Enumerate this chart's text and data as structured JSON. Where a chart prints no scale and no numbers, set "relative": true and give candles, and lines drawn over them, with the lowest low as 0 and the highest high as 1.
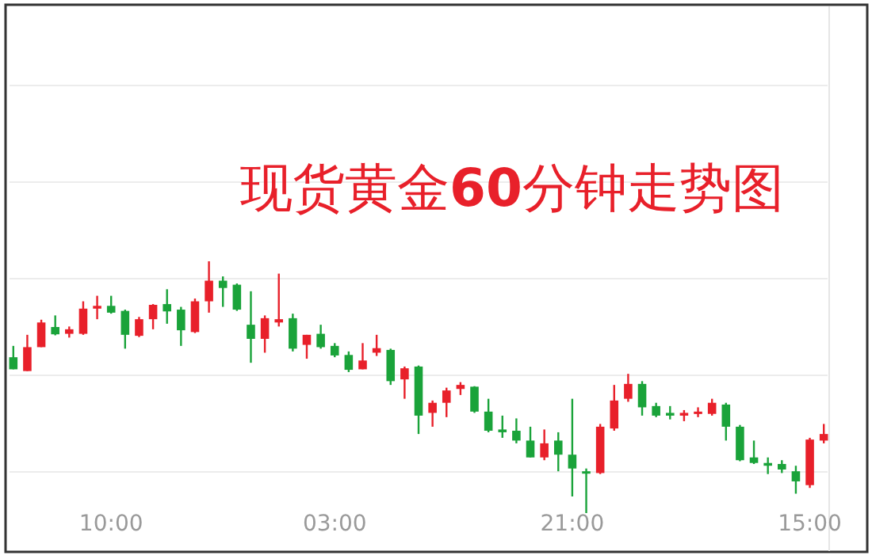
{
  "chart_data": {
    "type": "candlestick",
    "title": "现货黄金**60**分钟走势图",
    "relative": true,
    "grid": "y",
    "categories": [
      null,
      null,
      null,
      null,
      null,
      null,
      null,
      "10:00",
      null,
      null,
      null,
      null,
      null,
      null,
      null,
      null,
      null,
      null,
      null,
      null,
      null,
      null,
      null,
      "03:00",
      null,
      null,
      null,
      null,
      null,
      null,
      null,
      null,
      null,
      null,
      null,
      null,
      null,
      null,
      null,
      null,
      "21:00",
      null,
      null,
      null,
      null,
      null,
      null,
      null,
      null,
      null,
      null,
      null,
      null,
      null,
      null,
      null,
      null,
      "15:00",
      null
    ],
    "ohlc": [
      [
        0.619,
        0.664,
        0.571,
        0.571
      ],
      [
        0.564,
        0.708,
        0.564,
        0.659
      ],
      [
        0.659,
        0.768,
        0.659,
        0.757
      ],
      [
        0.739,
        0.785,
        0.706,
        0.71
      ],
      [
        0.712,
        0.741,
        0.697,
        0.73
      ],
      [
        0.712,
        0.841,
        0.708,
        0.812
      ],
      [
        0.812,
        0.863,
        0.77,
        0.823
      ],
      [
        0.823,
        0.863,
        0.792,
        0.796
      ],
      [
        0.803,
        0.808,
        0.653,
        0.708
      ],
      [
        0.704,
        0.779,
        0.699,
        0.77
      ],
      [
        0.77,
        0.83,
        0.73,
        0.827
      ],
      [
        0.83,
        0.889,
        0.752,
        0.801
      ],
      [
        0.808,
        0.819,
        0.664,
        0.726
      ],
      [
        0.719,
        0.852,
        0.715,
        0.841
      ],
      [
        0.841,
        1.0,
        0.796,
        0.923
      ],
      [
        0.923,
        0.94,
        0.819,
        0.894
      ],
      [
        0.907,
        0.912,
        0.803,
        0.808
      ],
      [
        0.748,
        0.881,
        0.597,
        0.692
      ],
      [
        0.692,
        0.785,
        0.637,
        0.774
      ],
      [
        0.757,
        0.951,
        0.741,
        0.77
      ],
      [
        0.774,
        0.792,
        0.642,
        0.653
      ],
      [
        0.668,
        0.708,
        0.613,
        0.708
      ],
      [
        0.712,
        0.748,
        0.653,
        0.659
      ],
      [
        0.664,
        0.675,
        0.619,
        0.626
      ],
      [
        0.628,
        0.642,
        0.56,
        0.569
      ],
      [
        0.571,
        0.675,
        0.571,
        0.606
      ],
      [
        0.637,
        0.708,
        0.624,
        0.655
      ],
      [
        0.648,
        0.653,
        0.509,
        0.524
      ],
      [
        0.531,
        0.582,
        0.454,
        0.575
      ],
      [
        0.582,
        0.586,
        0.314,
        0.387
      ],
      [
        0.398,
        0.447,
        0.343,
        0.438
      ],
      [
        0.438,
        0.498,
        0.381,
        0.487
      ],
      [
        0.493,
        0.52,
        0.469,
        0.509
      ],
      [
        0.502,
        0.504,
        0.398,
        0.403
      ],
      [
        0.403,
        0.454,
        0.321,
        0.327
      ],
      [
        0.332,
        0.387,
        0.299,
        0.321
      ],
      [
        0.327,
        0.376,
        0.277,
        0.288
      ],
      [
        0.288,
        0.343,
        0.221,
        0.221
      ],
      [
        0.221,
        0.332,
        0.21,
        0.277
      ],
      [
        0.288,
        0.321,
        0.166,
        0.232
      ],
      [
        0.232,
        0.454,
        0.066,
        0.177
      ],
      [
        0.166,
        0.177,
        0.0,
        0.159
      ],
      [
        0.159,
        0.354,
        0.155,
        0.343
      ],
      [
        0.336,
        0.509,
        0.327,
        0.447
      ],
      [
        0.454,
        0.553,
        0.442,
        0.513
      ],
      [
        0.513,
        0.524,
        0.387,
        0.42
      ],
      [
        0.425,
        0.438,
        0.381,
        0.387
      ],
      [
        0.398,
        0.425,
        0.372,
        0.387
      ],
      [
        0.387,
        0.409,
        0.365,
        0.398
      ],
      [
        0.394,
        0.42,
        0.381,
        0.403
      ],
      [
        0.394,
        0.454,
        0.387,
        0.438
      ],
      [
        0.431,
        0.438,
        0.288,
        0.343
      ],
      [
        0.343,
        0.35,
        0.206,
        0.21
      ],
      [
        0.221,
        0.288,
        0.195,
        0.199
      ],
      [
        0.199,
        0.221,
        0.155,
        0.188
      ],
      [
        0.195,
        0.21,
        0.159,
        0.173
      ],
      [
        0.166,
        0.188,
        0.077,
        0.126
      ],
      [
        0.111,
        0.299,
        0.1,
        0.292
      ],
      [
        0.288,
        0.354,
        0.277,
        0.314
      ]
    ],
    "colors": [
      "#1aa33a",
      "#e8202a",
      "#e8202a",
      "#1aa33a",
      "#e8202a",
      "#e8202a",
      "#e8202a",
      "#1aa33a",
      "#1aa33a",
      "#e8202a",
      "#e8202a",
      "#1aa33a",
      "#1aa33a",
      "#e8202a",
      "#e8202a",
      "#1aa33a",
      "#1aa33a",
      "#1aa33a",
      "#e8202a",
      "#e8202a",
      "#1aa33a",
      "#e8202a",
      "#1aa33a",
      "#1aa33a",
      "#1aa33a",
      "#e8202a",
      "#e8202a",
      "#1aa33a",
      "#e8202a",
      "#1aa33a",
      "#e8202a",
      "#e8202a",
      "#e8202a",
      "#1aa33a",
      "#1aa33a",
      "#1aa33a",
      "#1aa33a",
      "#1aa33a",
      "#e8202a",
      "#1aa33a",
      "#1aa33a",
      "#1aa33a",
      "#e8202a",
      "#e8202a",
      "#e8202a",
      "#1aa33a",
      "#1aa33a",
      "#1aa33a",
      "#e8202a",
      "#e8202a",
      "#e8202a",
      "#1aa33a",
      "#1aa33a",
      "#1aa33a",
      "#1aa33a",
      "#1aa33a",
      "#1aa33a",
      "#e8202a",
      "#e8202a"
    ]
  }
}
